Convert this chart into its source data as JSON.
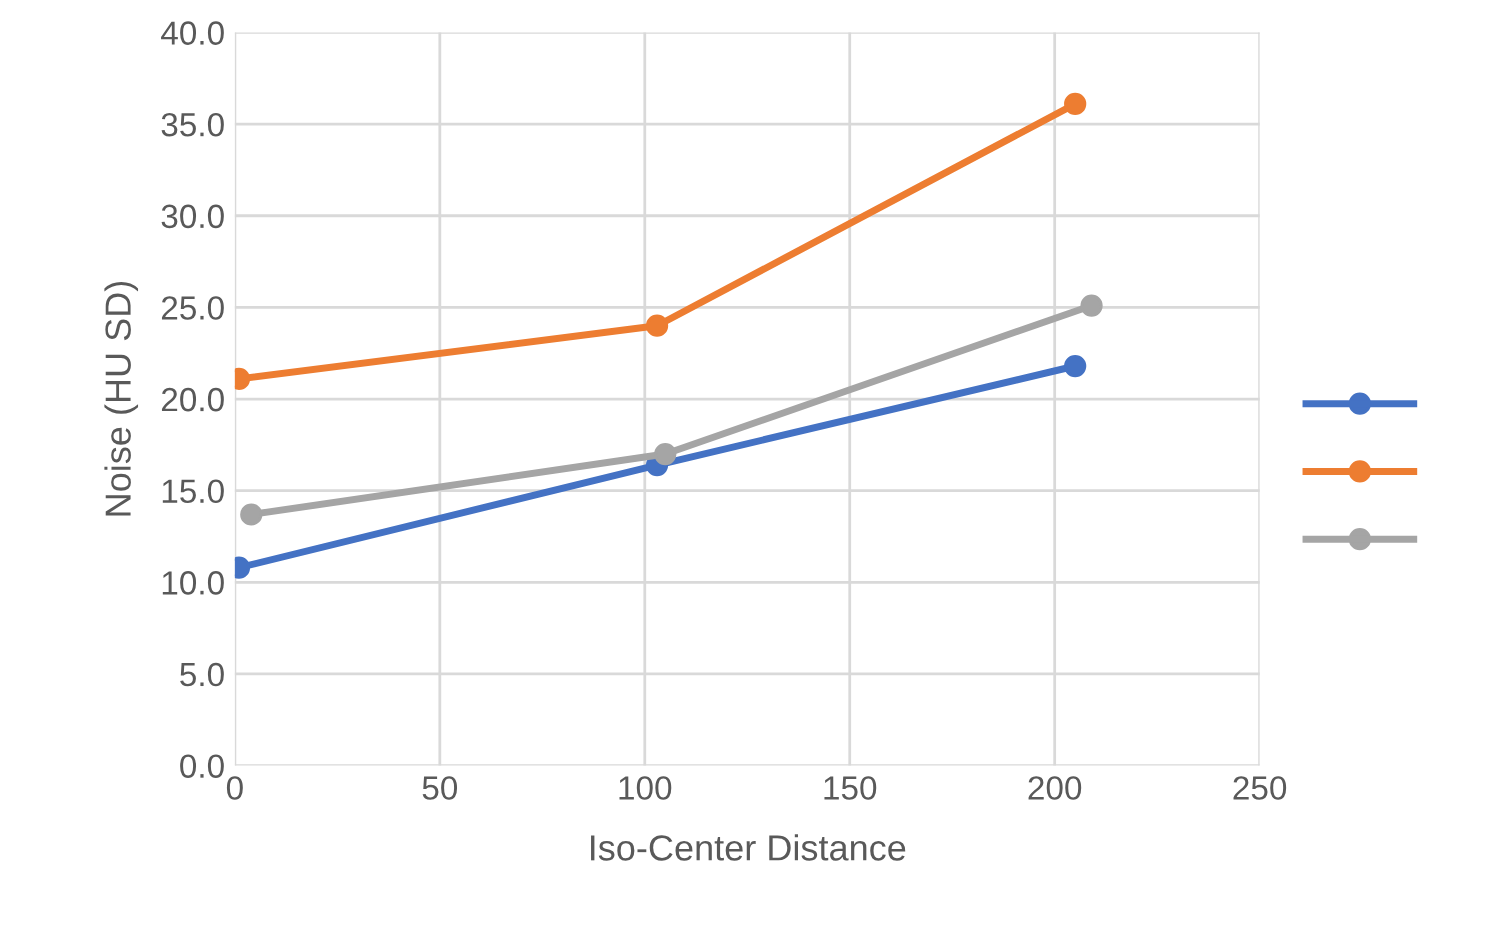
{
  "chart_data": {
    "type": "line",
    "xlabel": "Iso-Center Distance",
    "ylabel": "Noise (HU SD)",
    "xlim": [
      0,
      250
    ],
    "xticks": [
      0,
      50,
      100,
      150,
      200,
      250
    ],
    "ylim": [
      0,
      40
    ],
    "yticks": [
      {
        "value": 0,
        "label": "0.0"
      },
      {
        "value": 5,
        "label": "5.0"
      },
      {
        "value": 10,
        "label": "10.0"
      },
      {
        "value": 15,
        "label": "15.0"
      },
      {
        "value": 20,
        "label": "20.0"
      },
      {
        "value": 25,
        "label": "25.0"
      },
      {
        "value": 30,
        "label": "30.0"
      },
      {
        "value": 35,
        "label": "35.0"
      },
      {
        "value": 40,
        "label": "40.0"
      }
    ],
    "grid": true,
    "marker": "circle",
    "line_style": "solid",
    "series": [
      {
        "color": "#4472c4",
        "x": [
          1,
          103,
          205
        ],
        "values": [
          10.8,
          16.4,
          21.8
        ]
      },
      {
        "color": "#ed7d31",
        "x": [
          1,
          103,
          205
        ],
        "values": [
          21.1,
          24.0,
          36.1
        ]
      },
      {
        "color": "#a5a5a5",
        "x": [
          4,
          105,
          209
        ],
        "values": [
          13.7,
          17.0,
          25.1
        ]
      }
    ]
  }
}
